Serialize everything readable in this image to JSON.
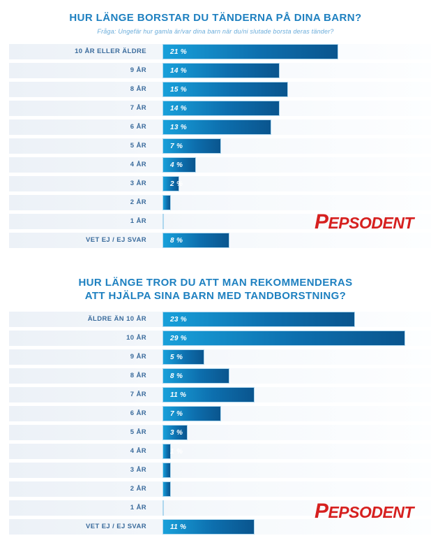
{
  "brand": {
    "logo_text": "Pepsodent",
    "logo_color": "#d6201f"
  },
  "colors": {
    "title": "#1e80c0",
    "subtitle": "#6aacda",
    "category_label": "#3a6b9c",
    "bar_gradient_start": "#18a0da",
    "bar_gradient_end": "#0a558e",
    "bar_border": "#aed7ee",
    "row_band_start": "#ecf1f7",
    "row_band_end": "#fdfeff",
    "value_text": "#ffffff"
  },
  "chart_data": [
    {
      "type": "bar",
      "orientation": "horizontal",
      "title": "HUR LÄNGE BORSTAR DU TÄNDERNA PÅ DINA BARN?",
      "title_lines": [
        "HUR LÄNGE BORSTAR DU TÄNDERNA PÅ DINA BARN?"
      ],
      "subtitle": "Fråga: Ungefär hur gamla är/var dina barn när du/ni slutade borsta deras tänder?",
      "unit": "%",
      "xlim": [
        0,
        30
      ],
      "grid": false,
      "legend": false,
      "value_label_position": "inside-left",
      "categories": [
        "10 ÅR ELLER ÄLDRE",
        "9 ÅR",
        "8 ÅR",
        "7 ÅR",
        "6 ÅR",
        "5 ÅR",
        "4 ÅR",
        "3 ÅR",
        "2 ÅR",
        "1 ÅR",
        "VET EJ / EJ SVAR"
      ],
      "values": [
        21,
        14,
        15,
        14,
        13,
        7,
        4,
        2,
        1,
        0,
        8
      ],
      "value_labels": [
        "21 %",
        "14 %",
        "15 %",
        "14 %",
        "13 %",
        "7 %",
        "4 %",
        "2 %",
        "",
        "",
        "8 %"
      ]
    },
    {
      "type": "bar",
      "orientation": "horizontal",
      "title": "HUR LÄNGE TROR DU ATT MAN REKOMMENDERAS ATT HJÄLPA SINA BARN MED TANDBORSTNING?",
      "title_lines": [
        "HUR LÄNGE TROR DU ATT MAN REKOMMENDERAS",
        "ATT HJÄLPA SINA BARN MED TANDBORSTNING?"
      ],
      "subtitle": "",
      "unit": "%",
      "xlim": [
        0,
        30
      ],
      "grid": false,
      "legend": false,
      "value_label_position": "inside-left",
      "categories": [
        "ÄLDRE ÄN 10 ÅR",
        "10 ÅR",
        "9 ÅR",
        "8 ÅR",
        "7 ÅR",
        "6 ÅR",
        "5 ÅR",
        "4 ÅR",
        "3 ÅR",
        "2 ÅR",
        "1 ÅR",
        "VET EJ / EJ SVAR"
      ],
      "values": [
        23,
        29,
        5,
        8,
        11,
        7,
        3,
        1,
        1,
        1,
        0,
        11
      ],
      "value_labels": [
        "23 %",
        "29 %",
        "5 %",
        "8 %",
        "11 %",
        "7 %",
        "3 %",
        "1 %",
        "",
        "",
        "",
        "11 %"
      ]
    }
  ]
}
